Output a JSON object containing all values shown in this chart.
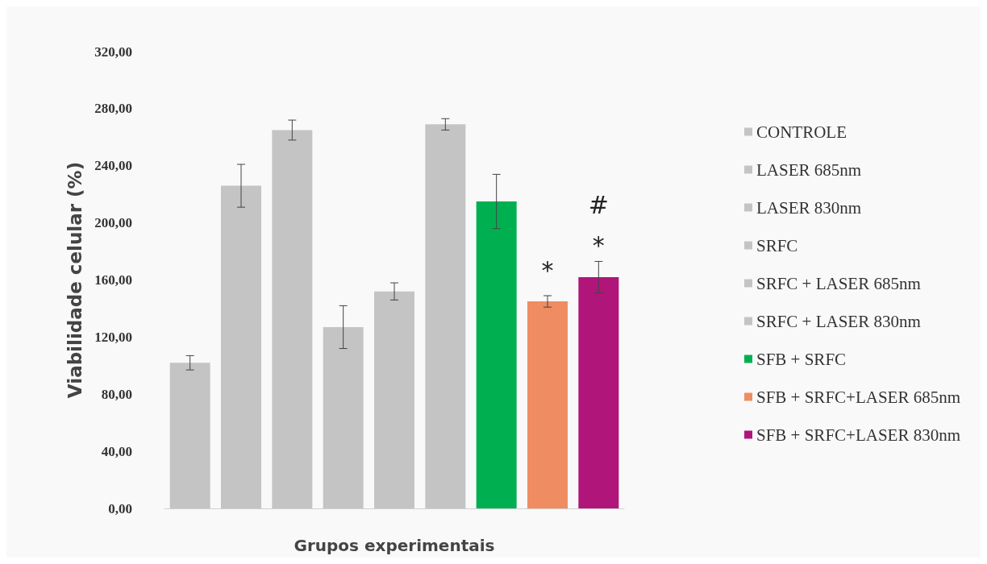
{
  "chart_data": {
    "type": "bar",
    "xlabel": "Grupos experimentais",
    "ylabel": "Viabilidade celular (%)",
    "categories": [
      null,
      null,
      null,
      null,
      null,
      null,
      null,
      null,
      null
    ],
    "stacked": true,
    "grid": false,
    "legend": "right",
    "ylim": [
      0,
      320
    ],
    "yticks": [
      {
        "value": 0,
        "label": "0,00"
      },
      {
        "value": 40,
        "label": "40,00"
      },
      {
        "value": 80,
        "label": "80,00"
      },
      {
        "value": 120,
        "label": "120,00"
      },
      {
        "value": 160,
        "label": "160,00"
      },
      {
        "value": 200,
        "label": "200,00"
      },
      {
        "value": 240,
        "label": "240,00"
      },
      {
        "value": 280,
        "label": "280,00"
      },
      {
        "value": 320,
        "label": "320,00"
      }
    ],
    "series": [
      {
        "name": "CONTROLE",
        "color": "#c4c4c4",
        "values": [
          102,
          null,
          null,
          null,
          null,
          null,
          null,
          null,
          null
        ],
        "errors": [
          5,
          null,
          null,
          null,
          null,
          null,
          null,
          null,
          null
        ]
      },
      {
        "name": "LASER 685nm",
        "color": "#c4c4c4",
        "values": [
          null,
          226,
          null,
          null,
          null,
          null,
          null,
          null,
          null
        ],
        "errors": [
          null,
          15,
          null,
          null,
          null,
          null,
          null,
          null,
          null
        ]
      },
      {
        "name": "LASER 830nm",
        "color": "#c4c4c4",
        "values": [
          null,
          null,
          265,
          null,
          null,
          null,
          null,
          null,
          null
        ],
        "errors": [
          null,
          null,
          7,
          null,
          null,
          null,
          null,
          null,
          null
        ]
      },
      {
        "name": "SRFC",
        "color": "#c4c4c4",
        "values": [
          null,
          null,
          null,
          127,
          null,
          null,
          null,
          null,
          null
        ],
        "errors": [
          null,
          null,
          null,
          15,
          null,
          null,
          null,
          null,
          null
        ]
      },
      {
        "name": "SRFC + LASER 685nm",
        "color": "#c4c4c4",
        "values": [
          null,
          null,
          null,
          null,
          152,
          null,
          null,
          null,
          null
        ],
        "errors": [
          null,
          null,
          null,
          null,
          6,
          null,
          null,
          null,
          null
        ]
      },
      {
        "name": "SRFC + LASER 830nm",
        "color": "#c4c4c4",
        "values": [
          null,
          null,
          null,
          null,
          null,
          269,
          null,
          null,
          null
        ],
        "errors": [
          null,
          null,
          null,
          null,
          null,
          4,
          null,
          null,
          null
        ]
      },
      {
        "name": "SFB + SRFC",
        "color": "#00b050",
        "values": [
          null,
          null,
          null,
          null,
          null,
          null,
          215,
          null,
          null
        ],
        "errors": [
          null,
          null,
          null,
          null,
          null,
          null,
          19,
          null,
          null
        ]
      },
      {
        "name": "SFB + SRFC+LASER 685nm",
        "color": "#f08c62",
        "values": [
          null,
          null,
          null,
          null,
          null,
          null,
          null,
          145,
          null
        ],
        "errors": [
          null,
          null,
          null,
          null,
          null,
          null,
          null,
          4,
          null
        ],
        "value_labels": [
          null,
          null,
          null,
          null,
          null,
          null,
          null,
          "*",
          null
        ]
      },
      {
        "name": "SFB + SRFC+LASER 830nm",
        "color": "#b0157a",
        "values": [
          null,
          null,
          null,
          null,
          null,
          null,
          null,
          null,
          162
        ],
        "errors": [
          null,
          null,
          null,
          null,
          null,
          null,
          null,
          null,
          11
        ],
        "value_labels": [
          null,
          null,
          null,
          null,
          null,
          null,
          null,
          null,
          "#\n*"
        ]
      }
    ]
  }
}
